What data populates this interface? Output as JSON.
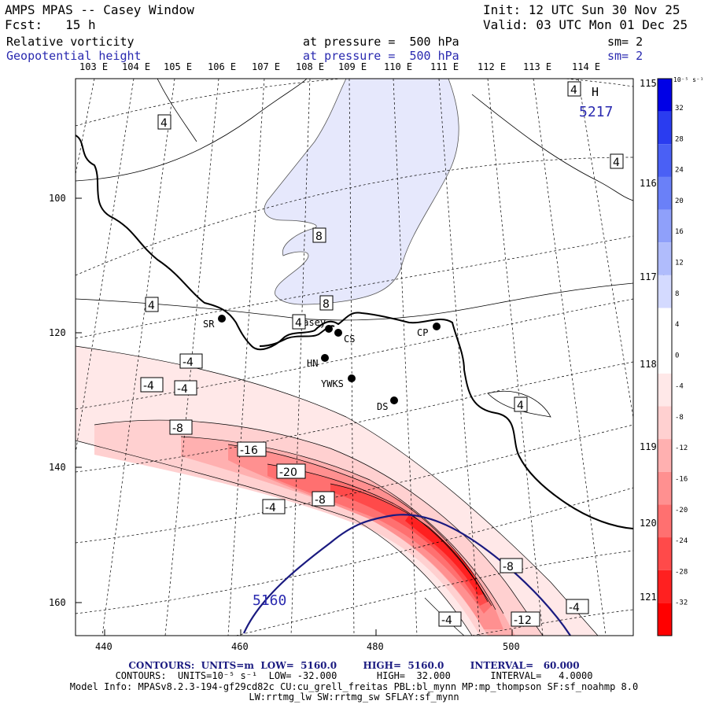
{
  "header": {
    "line1_left": "AMPS MPAS -- Casey Window",
    "line1_right": "Init: 12 UTC Sun 30 Nov 25",
    "line2_left": "Fcst:   15 h",
    "line2_right": "Valid: 03 UTC Mon 01 Dec 25",
    "field1_name": "Relative vorticity",
    "field1_level": "at pressure =  500 hPa",
    "field1_sm": "sm= 2",
    "field2_name": "Geopotential height",
    "field2_level": "at pressure =  500 hPa",
    "field2_sm": "sm= 2"
  },
  "top_longitudes": [
    "103 E",
    "104 E",
    "105 E",
    "106 E",
    "107 E",
    "108 E",
    "109 E",
    "110 E",
    "111 E",
    "112 E",
    "113 E",
    "114 E"
  ],
  "right_longitudes": [
    "115 E",
    "116 E",
    "117 E",
    "118 E",
    "119 E",
    "120 E",
    "121 E"
  ],
  "x_axis_ticks": [
    "440",
    "460",
    "480",
    "500"
  ],
  "y_axis_ticks": [
    "100",
    "120",
    "140",
    "160"
  ],
  "stations": [
    {
      "id": "SR"
    },
    {
      "id": "Casey"
    },
    {
      "id": "CS"
    },
    {
      "id": "CP"
    },
    {
      "id": "HN"
    },
    {
      "id": "YWKS"
    },
    {
      "id": "DS"
    }
  ],
  "contour_labels": [
    "4",
    "4",
    "8",
    "8",
    "4",
    "4",
    "4",
    "-4",
    "-4",
    "-4",
    "-8",
    "-16",
    "-20",
    "-8",
    "-4",
    "-8",
    "-4",
    "-12",
    "-4",
    "4"
  ],
  "height_labels": {
    "low": "5160",
    "high": "5217",
    "high_marker": "H"
  },
  "colorbar": {
    "unit": "10⁻⁵ s⁻¹",
    "ticks": [
      "32",
      "28",
      "24",
      "20",
      "16",
      "12",
      "8",
      "4",
      "0",
      "-4",
      "-8",
      "-12",
      "-16",
      "-20",
      "-24",
      "-28",
      "-32"
    ],
    "colors": [
      "#0000e6",
      "#2a3cf0",
      "#4a60f5",
      "#6a80f8",
      "#8fa0fa",
      "#b0bcfc",
      "#d4daff",
      "#ffffff",
      "#ffffff",
      "#ffe8e8",
      "#ffd0d0",
      "#ffb0b0",
      "#ff9090",
      "#ff7070",
      "#ff4a4a",
      "#ff2020",
      "#ff0000"
    ]
  },
  "footer": {
    "line1": "CONTOURS:  UNITS=m  LOW=  5160.0        HIGH=  5160.0        INTERVAL=   60.000",
    "line2": "CONTOURS:  UNITS=10⁻⁵ s⁻¹  LOW= -32.000       HIGH=  32.000       INTERVAL=   4.0000",
    "line3": "Model Info: MPASv8.2.3-194-gf29cd82c CU:cu_grell_freitas PBL:bl_mynn MP:mp_thompson SF:sf_noahmp 8.0",
    "line4": "LW:rrtmg_lw SW:rrtmg_sw SFLAY:sf_mynn"
  }
}
